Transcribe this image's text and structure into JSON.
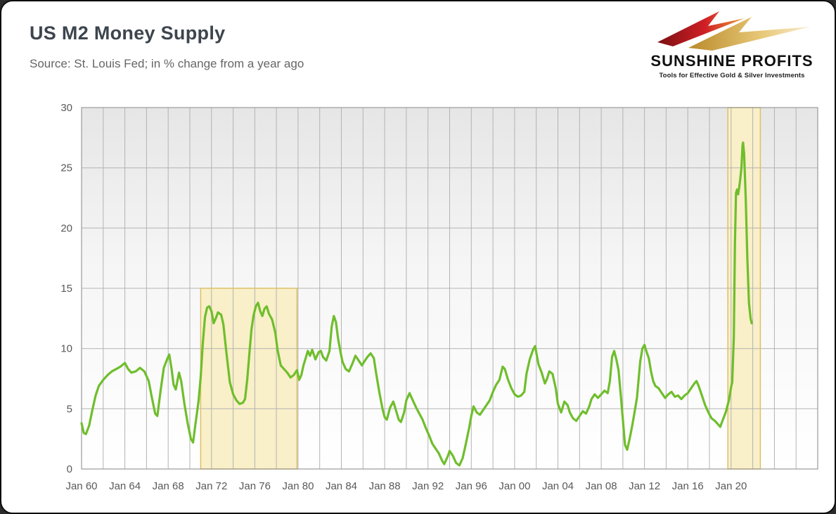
{
  "header": {
    "title": "US M2 Money Supply",
    "subtitle": "Source: St. Louis Fed; in % change from a year ago"
  },
  "logo": {
    "name": "SUNSHINE PROFITS",
    "tagline": "Tools for Effective Gold & Silver Investments"
  },
  "chart_data": {
    "type": "line",
    "title": "US M2 Money Supply",
    "subtitle": "Source: St. Louis Fed; in % change from a year ago",
    "xlabel": "",
    "ylabel": "% change from a year ago",
    "x_domain": [
      1960,
      2028
    ],
    "y_domain": [
      0,
      30
    ],
    "x_grid_step": 2,
    "y_ticks": [
      0,
      5,
      10,
      15,
      20,
      25,
      30
    ],
    "x_labels": [
      {
        "year": 1960,
        "text": "Jan 60"
      },
      {
        "year": 1964,
        "text": "Jan 64"
      },
      {
        "year": 1968,
        "text": "Jan 68"
      },
      {
        "year": 1972,
        "text": "Jan 72"
      },
      {
        "year": 1976,
        "text": "Jan 76"
      },
      {
        "year": 1980,
        "text": "Jan 80"
      },
      {
        "year": 1984,
        "text": "Jan 84"
      },
      {
        "year": 1988,
        "text": "Jan 88"
      },
      {
        "year": 1992,
        "text": "Jan 92"
      },
      {
        "year": 1996,
        "text": "Jan 96"
      },
      {
        "year": 2000,
        "text": "Jan 00"
      },
      {
        "year": 2004,
        "text": "Jan 04"
      },
      {
        "year": 2008,
        "text": "Jan 08"
      },
      {
        "year": 2012,
        "text": "Jan 12"
      },
      {
        "year": 2016,
        "text": "Jan 16"
      },
      {
        "year": 2020,
        "text": "Jan 20"
      }
    ],
    "highlight_bands": [
      {
        "x1": 1971.0,
        "x2": 1979.9,
        "y1": 0,
        "y2": 15
      },
      {
        "x1": 2019.7,
        "x2": 2022.7,
        "y1": 0,
        "y2": 30
      }
    ],
    "grid": true,
    "legend": "none",
    "line_color": "#6fbe2c",
    "band_fill": "#f9efc8",
    "band_stroke": "#dcc06a",
    "grid_color": "#b3b3b3",
    "border_color": "#999999",
    "axis_text_color": "#595959",
    "series": [
      {
        "name": "M2 money supply, % change from a year ago",
        "points": [
          [
            1960.0,
            3.8
          ],
          [
            1960.2,
            3.0
          ],
          [
            1960.4,
            2.9
          ],
          [
            1960.7,
            3.6
          ],
          [
            1961.0,
            4.9
          ],
          [
            1961.3,
            6.1
          ],
          [
            1961.6,
            6.9
          ],
          [
            1962.0,
            7.4
          ],
          [
            1962.4,
            7.8
          ],
          [
            1962.8,
            8.1
          ],
          [
            1963.2,
            8.3
          ],
          [
            1963.6,
            8.5
          ],
          [
            1964.0,
            8.8
          ],
          [
            1964.3,
            8.3
          ],
          [
            1964.6,
            8.0
          ],
          [
            1965.0,
            8.1
          ],
          [
            1965.4,
            8.4
          ],
          [
            1965.8,
            8.1
          ],
          [
            1966.2,
            7.3
          ],
          [
            1966.5,
            5.9
          ],
          [
            1966.8,
            4.6
          ],
          [
            1967.0,
            4.4
          ],
          [
            1967.3,
            6.5
          ],
          [
            1967.6,
            8.4
          ],
          [
            1967.9,
            9.1
          ],
          [
            1968.1,
            9.5
          ],
          [
            1968.3,
            8.4
          ],
          [
            1968.5,
            7.0
          ],
          [
            1968.7,
            6.6
          ],
          [
            1969.0,
            8.0
          ],
          [
            1969.2,
            7.3
          ],
          [
            1969.5,
            5.4
          ],
          [
            1969.8,
            3.8
          ],
          [
            1970.1,
            2.5
          ],
          [
            1970.3,
            2.2
          ],
          [
            1970.5,
            3.6
          ],
          [
            1970.8,
            5.6
          ],
          [
            1971.0,
            7.6
          ],
          [
            1971.2,
            10.4
          ],
          [
            1971.4,
            12.6
          ],
          [
            1971.6,
            13.4
          ],
          [
            1971.8,
            13.5
          ],
          [
            1972.0,
            13.1
          ],
          [
            1972.2,
            12.1
          ],
          [
            1972.4,
            12.5
          ],
          [
            1972.6,
            13.0
          ],
          [
            1972.9,
            12.8
          ],
          [
            1973.1,
            12.0
          ],
          [
            1973.4,
            9.5
          ],
          [
            1973.7,
            7.2
          ],
          [
            1974.0,
            6.2
          ],
          [
            1974.3,
            5.7
          ],
          [
            1974.6,
            5.4
          ],
          [
            1974.9,
            5.5
          ],
          [
            1975.1,
            5.8
          ],
          [
            1975.3,
            7.4
          ],
          [
            1975.5,
            9.6
          ],
          [
            1975.7,
            11.6
          ],
          [
            1975.9,
            12.8
          ],
          [
            1976.1,
            13.5
          ],
          [
            1976.3,
            13.8
          ],
          [
            1976.5,
            13.1
          ],
          [
            1976.7,
            12.7
          ],
          [
            1976.9,
            13.3
          ],
          [
            1977.1,
            13.5
          ],
          [
            1977.3,
            12.9
          ],
          [
            1977.6,
            12.4
          ],
          [
            1977.9,
            11.3
          ],
          [
            1978.1,
            9.9
          ],
          [
            1978.4,
            8.6
          ],
          [
            1978.7,
            8.3
          ],
          [
            1979.0,
            8.0
          ],
          [
            1979.3,
            7.6
          ],
          [
            1979.6,
            7.8
          ],
          [
            1979.9,
            8.2
          ],
          [
            1980.1,
            7.4
          ],
          [
            1980.3,
            7.8
          ],
          [
            1980.5,
            8.6
          ],
          [
            1980.7,
            9.2
          ],
          [
            1980.9,
            9.8
          ],
          [
            1981.1,
            9.4
          ],
          [
            1981.3,
            9.9
          ],
          [
            1981.6,
            9.1
          ],
          [
            1981.9,
            9.7
          ],
          [
            1982.1,
            9.8
          ],
          [
            1982.3,
            9.3
          ],
          [
            1982.6,
            9.0
          ],
          [
            1982.9,
            9.8
          ],
          [
            1983.1,
            11.8
          ],
          [
            1983.3,
            12.7
          ],
          [
            1983.5,
            12.2
          ],
          [
            1983.7,
            10.8
          ],
          [
            1983.9,
            9.8
          ],
          [
            1984.1,
            8.9
          ],
          [
            1984.4,
            8.3
          ],
          [
            1984.7,
            8.1
          ],
          [
            1985.0,
            8.7
          ],
          [
            1985.3,
            9.4
          ],
          [
            1985.6,
            9.0
          ],
          [
            1985.9,
            8.6
          ],
          [
            1986.1,
            8.9
          ],
          [
            1986.4,
            9.3
          ],
          [
            1986.7,
            9.6
          ],
          [
            1987.0,
            9.2
          ],
          [
            1987.2,
            8.0
          ],
          [
            1987.5,
            6.4
          ],
          [
            1987.8,
            5.0
          ],
          [
            1988.0,
            4.3
          ],
          [
            1988.2,
            4.1
          ],
          [
            1988.5,
            5.1
          ],
          [
            1988.8,
            5.6
          ],
          [
            1989.0,
            5.0
          ],
          [
            1989.3,
            4.1
          ],
          [
            1989.5,
            3.9
          ],
          [
            1989.8,
            4.7
          ],
          [
            1990.0,
            5.7
          ],
          [
            1990.3,
            6.3
          ],
          [
            1990.6,
            5.7
          ],
          [
            1990.9,
            5.1
          ],
          [
            1991.2,
            4.6
          ],
          [
            1991.5,
            4.1
          ],
          [
            1991.8,
            3.4
          ],
          [
            1992.1,
            2.8
          ],
          [
            1992.4,
            2.1
          ],
          [
            1992.7,
            1.7
          ],
          [
            1993.0,
            1.3
          ],
          [
            1993.3,
            0.7
          ],
          [
            1993.5,
            0.4
          ],
          [
            1993.8,
            1.0
          ],
          [
            1994.0,
            1.5
          ],
          [
            1994.3,
            1.1
          ],
          [
            1994.6,
            0.5
          ],
          [
            1994.9,
            0.3
          ],
          [
            1995.2,
            0.9
          ],
          [
            1995.5,
            2.1
          ],
          [
            1995.8,
            3.4
          ],
          [
            1996.0,
            4.4
          ],
          [
            1996.2,
            5.2
          ],
          [
            1996.5,
            4.7
          ],
          [
            1996.8,
            4.5
          ],
          [
            1997.1,
            4.9
          ],
          [
            1997.4,
            5.3
          ],
          [
            1997.7,
            5.7
          ],
          [
            1998.0,
            6.4
          ],
          [
            1998.3,
            7.0
          ],
          [
            1998.6,
            7.4
          ],
          [
            1998.9,
            8.5
          ],
          [
            1999.1,
            8.3
          ],
          [
            1999.4,
            7.4
          ],
          [
            1999.7,
            6.7
          ],
          [
            2000.0,
            6.2
          ],
          [
            2000.3,
            6.0
          ],
          [
            2000.6,
            6.1
          ],
          [
            2000.9,
            6.4
          ],
          [
            2001.1,
            7.9
          ],
          [
            2001.4,
            9.1
          ],
          [
            2001.7,
            9.9
          ],
          [
            2001.9,
            10.2
          ],
          [
            2002.2,
            8.7
          ],
          [
            2002.5,
            8.0
          ],
          [
            2002.8,
            7.1
          ],
          [
            2003.0,
            7.5
          ],
          [
            2003.2,
            8.1
          ],
          [
            2003.5,
            7.9
          ],
          [
            2003.8,
            6.7
          ],
          [
            2004.0,
            5.4
          ],
          [
            2004.3,
            4.7
          ],
          [
            2004.6,
            5.6
          ],
          [
            2004.9,
            5.3
          ],
          [
            2005.1,
            4.7
          ],
          [
            2005.4,
            4.2
          ],
          [
            2005.7,
            4.0
          ],
          [
            2006.0,
            4.4
          ],
          [
            2006.3,
            4.8
          ],
          [
            2006.6,
            4.6
          ],
          [
            2006.9,
            5.2
          ],
          [
            2007.1,
            5.8
          ],
          [
            2007.4,
            6.2
          ],
          [
            2007.7,
            5.9
          ],
          [
            2008.0,
            6.2
          ],
          [
            2008.3,
            6.5
          ],
          [
            2008.6,
            6.3
          ],
          [
            2008.8,
            7.3
          ],
          [
            2009.0,
            9.3
          ],
          [
            2009.2,
            9.8
          ],
          [
            2009.4,
            9.1
          ],
          [
            2009.6,
            8.2
          ],
          [
            2009.8,
            6.2
          ],
          [
            2010.0,
            4.1
          ],
          [
            2010.2,
            2.0
          ],
          [
            2010.4,
            1.6
          ],
          [
            2010.6,
            2.4
          ],
          [
            2010.8,
            3.3
          ],
          [
            2011.0,
            4.3
          ],
          [
            2011.3,
            5.9
          ],
          [
            2011.6,
            8.9
          ],
          [
            2011.8,
            10.0
          ],
          [
            2012.0,
            10.3
          ],
          [
            2012.2,
            9.7
          ],
          [
            2012.4,
            9.2
          ],
          [
            2012.6,
            8.1
          ],
          [
            2012.8,
            7.3
          ],
          [
            2013.0,
            6.9
          ],
          [
            2013.3,
            6.7
          ],
          [
            2013.6,
            6.3
          ],
          [
            2013.9,
            5.9
          ],
          [
            2014.2,
            6.2
          ],
          [
            2014.5,
            6.4
          ],
          [
            2014.8,
            6.0
          ],
          [
            2015.1,
            6.1
          ],
          [
            2015.4,
            5.8
          ],
          [
            2015.7,
            6.1
          ],
          [
            2016.0,
            6.3
          ],
          [
            2016.3,
            6.7
          ],
          [
            2016.6,
            7.1
          ],
          [
            2016.8,
            7.3
          ],
          [
            2017.0,
            6.9
          ],
          [
            2017.3,
            6.1
          ],
          [
            2017.6,
            5.3
          ],
          [
            2017.9,
            4.7
          ],
          [
            2018.2,
            4.2
          ],
          [
            2018.5,
            4.0
          ],
          [
            2018.8,
            3.7
          ],
          [
            2019.0,
            3.5
          ],
          [
            2019.2,
            4.0
          ],
          [
            2019.5,
            4.7
          ],
          [
            2019.8,
            5.7
          ],
          [
            2020.0,
            6.8
          ],
          [
            2020.1,
            7.2
          ],
          [
            2020.25,
            11.0
          ],
          [
            2020.35,
            18.5
          ],
          [
            2020.45,
            22.9
          ],
          [
            2020.55,
            23.2
          ],
          [
            2020.65,
            22.8
          ],
          [
            2020.75,
            23.4
          ],
          [
            2020.85,
            24.1
          ],
          [
            2020.95,
            25.0
          ],
          [
            2021.05,
            26.8
          ],
          [
            2021.1,
            27.1
          ],
          [
            2021.2,
            26.2
          ],
          [
            2021.35,
            22.5
          ],
          [
            2021.5,
            17.5
          ],
          [
            2021.65,
            13.8
          ],
          [
            2021.8,
            12.5
          ],
          [
            2021.9,
            12.1
          ]
        ]
      }
    ]
  }
}
